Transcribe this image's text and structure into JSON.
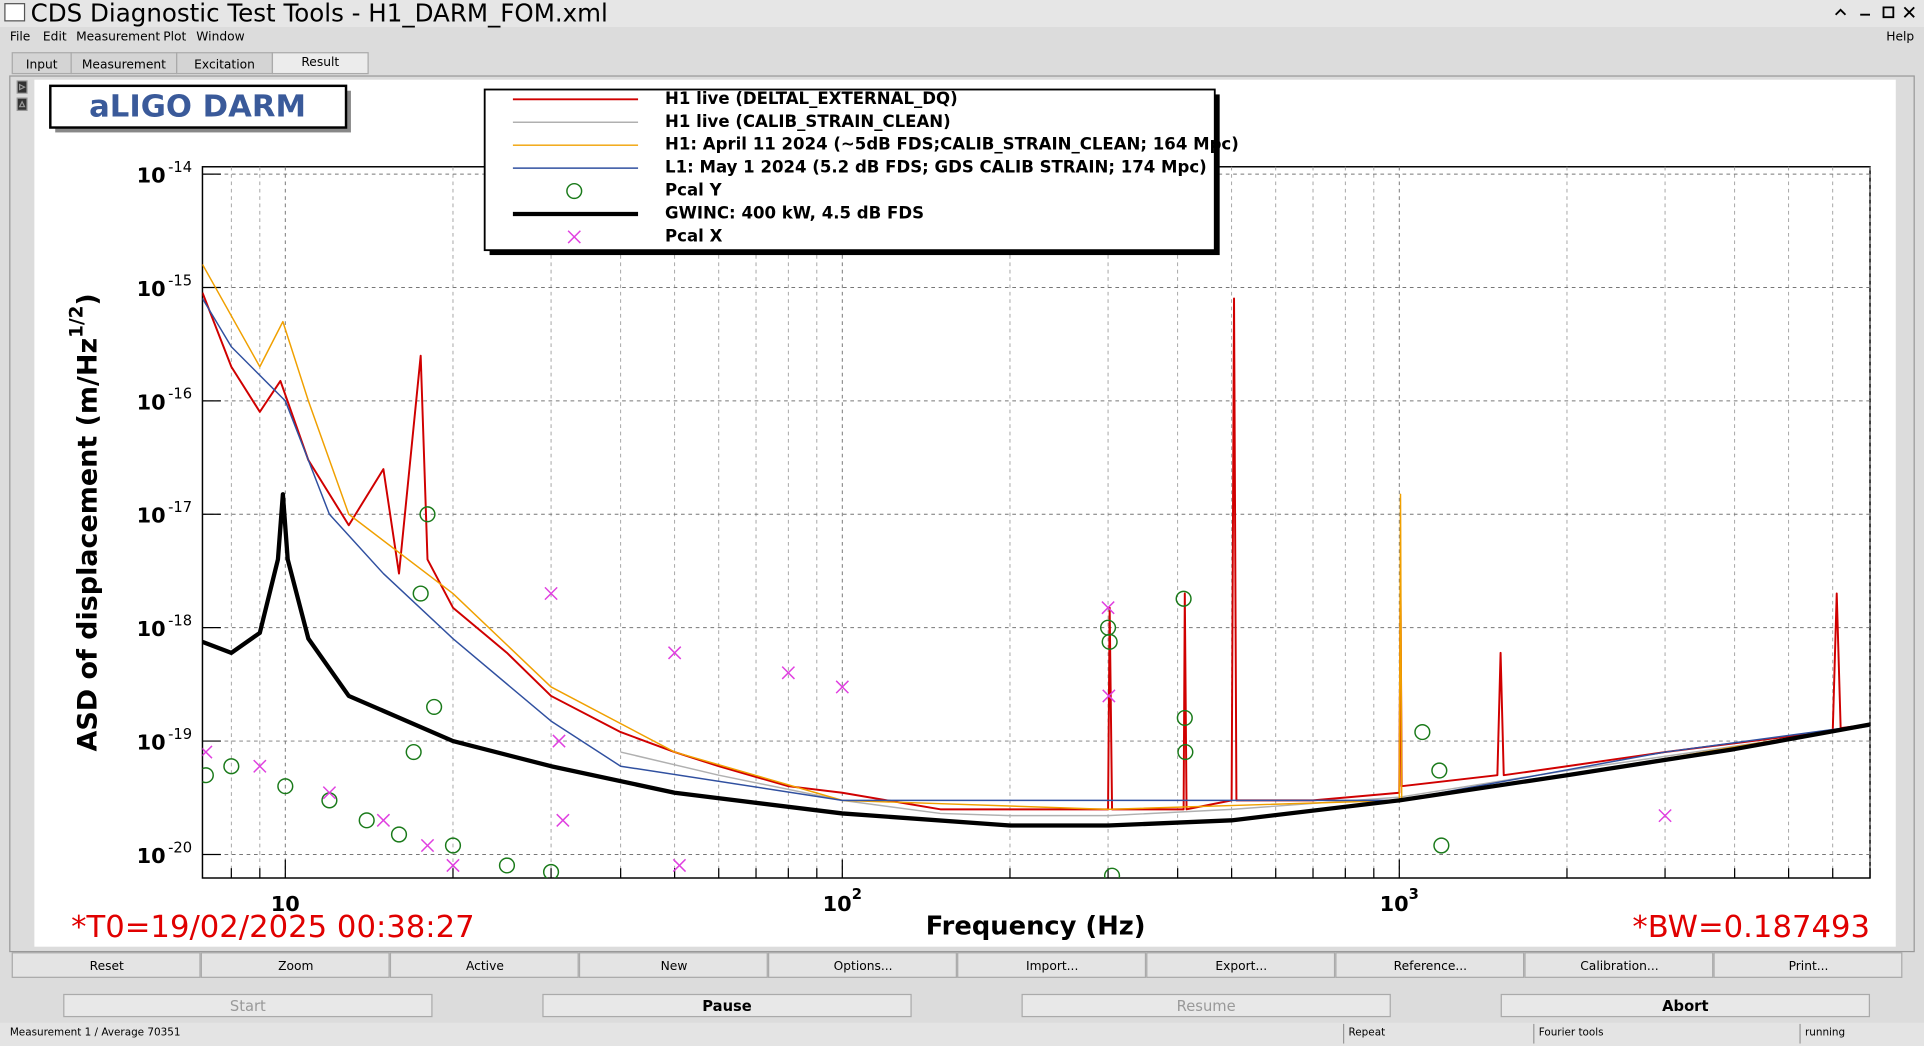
{
  "window": {
    "title": "CDS Diagnostic Test Tools - H1_DARM_FOM.xml",
    "menu": [
      "File",
      "Edit",
      "Measurement",
      "Plot",
      "Window"
    ],
    "help": "Help",
    "tabs": [
      "Input",
      "Measurement",
      "Excitation",
      "Result"
    ],
    "buttons": [
      "Reset",
      "Zoom",
      "Active",
      "New",
      "Options...",
      "Import...",
      "Export...",
      "Reference...",
      "Calibration...",
      "Print..."
    ],
    "actions": [
      {
        "label": "Start",
        "enabled": false
      },
      {
        "label": "Pause",
        "enabled": true
      },
      {
        "label": "Resume",
        "enabled": false
      },
      {
        "label": "Abort",
        "enabled": true
      }
    ],
    "status": [
      "Measurement 1 / Average 70351",
      "Repeat",
      "Fourier tools",
      "running"
    ]
  },
  "chart_data": {
    "type": "line",
    "box_title": "aLIGO DARM",
    "x_label": "Frequency (Hz)",
    "y_label": "ASD of displacement (m/Hz",
    "y_label_sup": "1/2",
    "y_label_end": ")",
    "annotations": [
      "*T0=19/02/2025 00:38:27",
      "*BW=0.187493"
    ],
    "xlog": true,
    "ylog": true,
    "grid": true,
    "xlim": [
      7.1,
      7000
    ],
    "ylim": [
      6.2e-21,
      1.16e-14
    ],
    "xticks": [
      10,
      {
        "value": 100,
        "label": "10",
        "sup": "2"
      },
      {
        "value": 1000,
        "label": "10",
        "sup": "3"
      }
    ],
    "xminorticks": [
      8,
      9,
      20,
      30,
      40,
      50,
      60,
      70,
      80,
      90,
      200,
      300,
      400,
      500,
      600,
      700,
      800,
      900,
      2000,
      3000,
      4000,
      5000,
      6000,
      7000
    ],
    "yticks": [
      {
        "value": 1e-20,
        "label": "10",
        "sup": "-20"
      },
      {
        "value": 1e-19,
        "label": "10",
        "sup": "-19"
      },
      {
        "value": 1e-18,
        "label": "10",
        "sup": "-18"
      },
      {
        "value": 1e-17,
        "label": "10",
        "sup": "-17"
      },
      {
        "value": 1e-16,
        "label": "10",
        "sup": "-16"
      },
      {
        "value": 1e-15,
        "label": "10",
        "sup": "-15"
      },
      {
        "value": 1e-14,
        "label": "10",
        "sup": "-14"
      }
    ],
    "series": [
      {
        "name": "H1 live (DELTAL_EXTERNAL_DQ)",
        "color": "#d00000",
        "style": "line",
        "width": 1.6,
        "x": [
          7.1,
          8,
          9,
          9.8,
          11,
          13,
          15,
          16,
          17.5,
          18,
          20,
          25,
          30,
          40,
          50,
          60,
          80,
          100,
          150,
          200,
          300,
          302,
          305,
          410,
          412,
          415,
          500,
          505,
          510,
          700,
          1000,
          1005,
          1010,
          1500,
          1520,
          1540,
          2000,
          3000,
          5000,
          6000,
          6100,
          6200,
          7000
        ],
        "values": [
          9e-16,
          2e-16,
          8e-17,
          1.5e-16,
          3e-17,
          8e-18,
          2.5e-17,
          3e-18,
          2.5e-16,
          4e-18,
          1.5e-18,
          6e-19,
          2.5e-19,
          1.2e-19,
          8e-20,
          6e-20,
          4e-20,
          3.5e-20,
          2.5e-20,
          2.5e-20,
          2.5e-20,
          1.5e-18,
          2.5e-20,
          2.5e-20,
          2e-18,
          2.5e-20,
          3e-20,
          8e-16,
          3e-20,
          3e-20,
          3.5e-20,
          2e-18,
          4e-20,
          5e-20,
          6e-19,
          5e-20,
          6e-20,
          8e-20,
          1.1e-19,
          1.2e-19,
          2e-18,
          1.3e-19,
          1.4e-19
        ]
      },
      {
        "name": "H1 live (CALIB_STRAIN_CLEAN)",
        "color": "#b0b0b0",
        "style": "line",
        "width": 1.2,
        "x": [
          40,
          60,
          100,
          150,
          200,
          300,
          500,
          1000,
          2000,
          4000,
          7000
        ],
        "values": [
          8e-20,
          5e-20,
          3e-20,
          2.3e-20,
          2.2e-20,
          2.2e-20,
          2.5e-20,
          3.2e-20,
          5.5e-20,
          9e-20,
          1.35e-19
        ]
      },
      {
        "name": "H1: April 11 2024 (~5dB FDS;CALIB_STRAIN_CLEAN; 164 Mpc)",
        "color": "#f0a000",
        "style": "line",
        "width": 1.2,
        "x": [
          7.1,
          9,
          9.9,
          11,
          13,
          20,
          30,
          50,
          100,
          300,
          1000,
          1005,
          1010,
          3000,
          7000
        ],
        "values": [
          1.6e-15,
          2e-16,
          5e-16,
          1e-16,
          1e-17,
          2e-18,
          3e-19,
          8e-20,
          3e-20,
          2.5e-20,
          3e-20,
          1.5e-17,
          3e-20,
          7e-20,
          1.4e-19
        ]
      },
      {
        "name": "L1: May 1 2024 (5.2 dB FDS; GDS CALIB STRAIN; 174 Mpc)",
        "color": "#3050a0",
        "style": "line",
        "width": 1.2,
        "x": [
          7.1,
          8,
          10,
          12,
          15,
          20,
          30,
          40,
          100,
          1000,
          3000,
          7000
        ],
        "values": [
          8e-16,
          3e-16,
          1e-16,
          1e-17,
          3e-18,
          8e-19,
          1.5e-19,
          6e-20,
          3e-20,
          3e-20,
          8e-20,
          1.4e-19
        ]
      },
      {
        "name": "Pcal Y",
        "color": "#1a7a1a",
        "style": "circle",
        "x": [
          7.2,
          8,
          10,
          12,
          14,
          16,
          17,
          17.5,
          18,
          18.5,
          20,
          25,
          30,
          300,
          302,
          305,
          410,
          412,
          413,
          1100,
          1180,
          1190
        ],
        "values": [
          5e-20,
          6e-20,
          4e-20,
          3e-20,
          2e-20,
          1.5e-20,
          8e-20,
          2e-18,
          1e-17,
          2e-19,
          1.2e-20,
          8e-21,
          7e-21,
          1e-18,
          7.5e-19,
          6.5e-21,
          1.8e-18,
          1.6e-19,
          8e-20,
          1.2e-19,
          5.5e-20,
          1.2e-20
        ]
      },
      {
        "name": "GWINC: 400 kW, 4.5 dB FDS",
        "color": "#000000",
        "style": "line",
        "width": 3.5,
        "x": [
          7.1,
          8,
          9,
          9.7,
          9.9,
          10.1,
          11,
          13,
          20,
          30,
          50,
          100,
          200,
          300,
          500,
          1000,
          2000,
          4000,
          7000
        ],
        "values": [
          7.5e-19,
          6e-19,
          9e-19,
          4e-18,
          1.5e-17,
          4e-18,
          8e-19,
          2.5e-19,
          1e-19,
          6e-20,
          3.5e-20,
          2.3e-20,
          1.8e-20,
          1.8e-20,
          2e-20,
          3e-20,
          5e-20,
          8.5e-20,
          1.4e-19
        ]
      },
      {
        "name": "Pcal X",
        "color": "#e040e0",
        "style": "x",
        "x": [
          7.2,
          9,
          12,
          15,
          18,
          20,
          30,
          31,
          31.5,
          50,
          51,
          80,
          100,
          300,
          301,
          3000
        ],
        "values": [
          8e-20,
          6e-20,
          3.5e-20,
          2e-20,
          1.2e-20,
          8e-21,
          2e-18,
          1e-19,
          2e-20,
          6e-19,
          8e-21,
          4e-19,
          3e-19,
          1.5e-18,
          2.5e-19,
          2.2e-20
        ]
      }
    ]
  }
}
